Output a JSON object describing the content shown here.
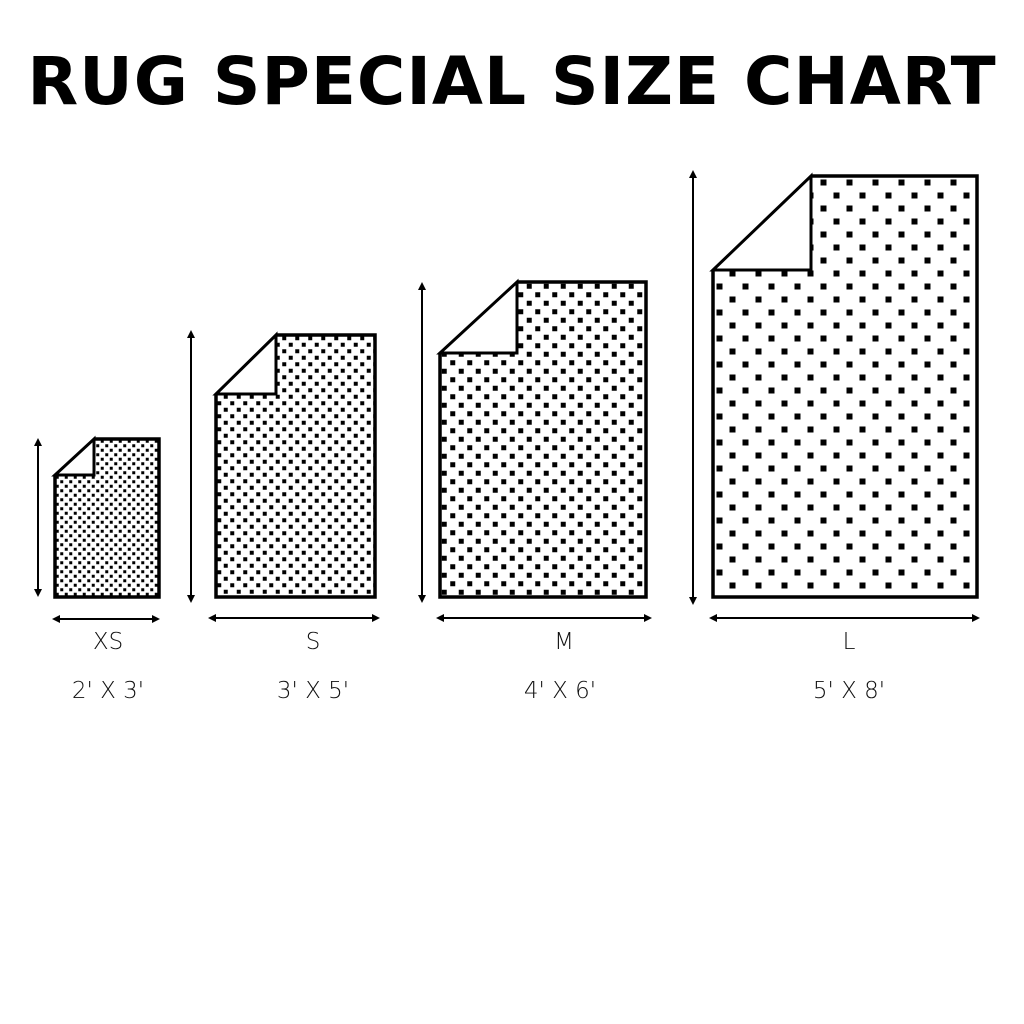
{
  "title": "RUG SPECIAL SIZE CHART",
  "sizes": [
    {
      "label": "XS",
      "dimensions": "2' X 3'"
    },
    {
      "label": "S",
      "dimensions": "3' X 5'"
    },
    {
      "label": "M",
      "dimensions": "4' X 6'"
    },
    {
      "label": "L",
      "dimensions": "5' X 8'"
    }
  ],
  "colors": {
    "ink": "#000000",
    "background": "#ffffff"
  }
}
